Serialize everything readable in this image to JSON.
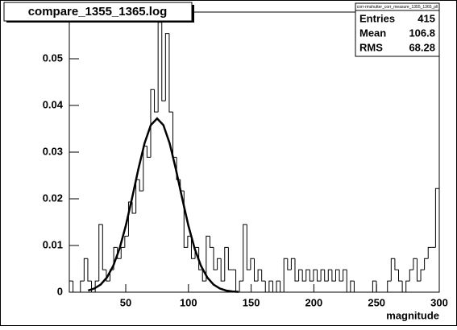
{
  "chart_data": {
    "type": "histogram",
    "title": "compare_1355_1365.log",
    "x_label": "magnitude",
    "bins": [
      5,
      7.95,
      10.9,
      13.85,
      16.8,
      19.75,
      22.7,
      25.65,
      28.6,
      31.55,
      34.5,
      37.45,
      40.4,
      43.35,
      46.3,
      49.25,
      52.2,
      55.15,
      58.1,
      61.05,
      64,
      66.95,
      69.9,
      72.85,
      75.8,
      78.75,
      81.7,
      84.65,
      87.6,
      90.55,
      93.5,
      96.45,
      99.4,
      102.35,
      105.3,
      108.25,
      111.2,
      114.15,
      117.1,
      120.05,
      123,
      125.95,
      128.9,
      131.85,
      134.8,
      137.75,
      140.7,
      143.65,
      146.6,
      149.55,
      152.5,
      155.45,
      158.4,
      161.35,
      164.3,
      167.25,
      170.2,
      173.15,
      176.1,
      179.05,
      182,
      184.95,
      187.9,
      190.85,
      193.8,
      196.75,
      199.7,
      202.65,
      205.6,
      208.55,
      211.5,
      214.45,
      217.4,
      220.35,
      223.3,
      226.25,
      229.2,
      232.15,
      235.1,
      238.05,
      241,
      243.95,
      246.9,
      249.85,
      252.8,
      255.75,
      258.7,
      261.65,
      264.6,
      267.55,
      270.5,
      273.45,
      276.4,
      279.35,
      282.3,
      285.25,
      288.2,
      291.15,
      294.1,
      297.05,
      300
    ],
    "values": [
      0.0024,
      0,
      0,
      0.0024,
      0.0072,
      0.0024,
      0,
      0.0024,
      0.0145,
      0.0048,
      0.0024,
      0.0048,
      0.0096,
      0.0072,
      0.0096,
      0.012,
      0.0193,
      0.0169,
      0.0241,
      0.0217,
      0.0313,
      0.0289,
      0.0434,
      0.0386,
      0.0578,
      0.041,
      0.0554,
      0.0386,
      0.0289,
      0.0241,
      0.0217,
      0.0096,
      0.012,
      0.0072,
      0.0096,
      0.0048,
      0.0024,
      0.012,
      0.0096,
      0.0048,
      0.0072,
      0.0024,
      0.0096,
      0.0048,
      0.0048,
      0,
      0.0024,
      0.0145,
      0.0048,
      0.0072,
      0.0024,
      0.0048,
      0.0024,
      0,
      0.0024,
      0,
      0.0024,
      0,
      0.0072,
      0.0048,
      0.0072,
      0.0024,
      0.0048,
      0.0024,
      0.0048,
      0.0024,
      0.0048,
      0.0024,
      0.0048,
      0.0024,
      0.0048,
      0.0024,
      0.0048,
      0.0024,
      0.0048,
      0,
      0.0024,
      0,
      0,
      0,
      0,
      0,
      0.0024,
      0,
      0,
      0,
      0.0024,
      0.0072,
      0.0048,
      0.0024,
      0,
      0.0024,
      0.0048,
      0.0072,
      0.0024,
      0.0048,
      0.0072,
      0.0096,
      0.0096,
      0.0222
    ],
    "color": "#000000",
    "fit": {
      "color": "#000000",
      "x": [
        20,
        25,
        30,
        35,
        40,
        45,
        50,
        55,
        60,
        65,
        70,
        75,
        80,
        85,
        90,
        95,
        100,
        105,
        110,
        115,
        120,
        125,
        130,
        135,
        140
      ],
      "values": [
        0.00035,
        0.00079,
        0.00163,
        0.00315,
        0.00562,
        0.00928,
        0.0142,
        0.0201,
        0.0263,
        0.0319,
        0.0358,
        0.0372,
        0.0358,
        0.0319,
        0.0263,
        0.0201,
        0.0142,
        0.00928,
        0.00562,
        0.00315,
        0.00163,
        0.00079,
        0.00035,
        0.000144,
        5.47e-05
      ]
    },
    "xlim": [
      5,
      300
    ],
    "xticks": [
      50,
      100,
      150,
      200,
      250,
      300
    ],
    "ylim": [
      0,
      0.06
    ],
    "yticks": [
      0,
      0.01,
      0.02,
      0.03,
      0.04,
      0.05
    ],
    "stats": {
      "title": "corr-rmshutter_corr_measure_1355_1365_pll",
      "rows": [
        {
          "label": "Entries",
          "value": "415"
        },
        {
          "label": "Mean",
          "value": "106.8"
        },
        {
          "label": "RMS",
          "value": "68.28"
        }
      ]
    }
  }
}
